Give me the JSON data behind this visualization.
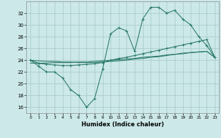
{
  "xlabel": "Humidex (Indice chaleur)",
  "background_color": "#cce8e8",
  "grid_color": "#aacccc",
  "line_color": "#2a7a6a",
  "x_values": [
    0,
    1,
    2,
    3,
    4,
    5,
    6,
    7,
    8,
    9,
    10,
    11,
    12,
    13,
    14,
    15,
    16,
    17,
    18,
    19,
    20,
    21,
    22,
    23
  ],
  "line1_y": [
    24,
    23,
    22,
    22,
    21,
    19,
    18,
    16,
    17.5,
    22.5,
    28.5,
    29.5,
    29,
    25.5,
    31,
    33,
    33,
    32,
    32.5,
    31,
    30,
    28,
    26.5,
    24.5
  ],
  "line2_y": [
    24,
    23.5,
    23.3,
    23.2,
    23.1,
    23.1,
    23.2,
    23.3,
    23.4,
    23.6,
    24.0,
    24.3,
    24.5,
    24.8,
    25.1,
    25.4,
    25.7,
    26.0,
    26.3,
    26.6,
    26.9,
    27.2,
    27.5,
    24.5
  ],
  "line3_y": [
    23.5,
    23.5,
    23.5,
    23.6,
    23.6,
    23.6,
    23.7,
    23.7,
    23.8,
    23.9,
    24.0,
    24.1,
    24.2,
    24.3,
    24.5,
    24.6,
    24.7,
    24.9,
    25.0,
    25.2,
    25.3,
    25.4,
    25.5,
    24.5
  ],
  "line4_y": [
    24.0,
    23.9,
    23.8,
    23.8,
    23.7,
    23.7,
    23.6,
    23.6,
    23.6,
    23.7,
    23.8,
    23.9,
    24.0,
    24.2,
    24.3,
    24.5,
    24.6,
    24.8,
    25.0,
    25.1,
    25.3,
    25.4,
    25.5,
    24.5
  ],
  "ylim": [
    15,
    34
  ],
  "yticks": [
    16,
    18,
    20,
    22,
    24,
    26,
    28,
    30,
    32
  ],
  "xlim": [
    -0.5,
    23.5
  ]
}
